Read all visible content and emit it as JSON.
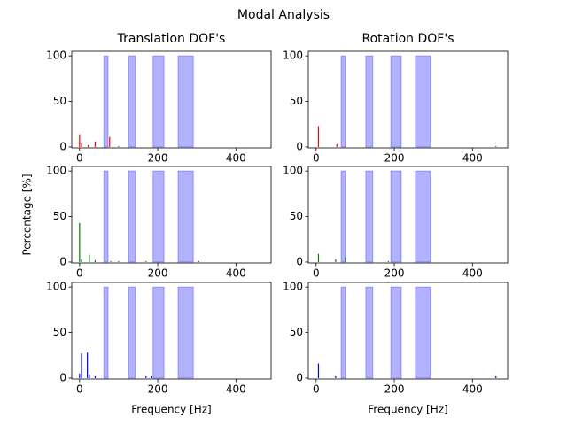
{
  "title": "Modal Analysis",
  "chart_data": [
    {
      "type": "bar",
      "title": "Translation DOF's",
      "xlim": [
        -20,
        490
      ],
      "ylim": [
        -1,
        105
      ],
      "xticks": [
        0,
        200,
        400
      ],
      "yticks": [
        0,
        50,
        100
      ],
      "spans": {
        "color": "#0000ff",
        "x0": [
          62,
          125,
          188,
          252
        ],
        "x1": [
          73,
          143,
          216,
          291
        ],
        "values": [
          100,
          100,
          100,
          100
        ]
      },
      "series": [
        {
          "color": "#ff0000",
          "x": [
            0,
            5,
            22,
            40,
            77,
            100
          ],
          "values": [
            14,
            4,
            2,
            6,
            11,
            1
          ]
        }
      ]
    },
    {
      "type": "bar",
      "title": "Rotation DOF's",
      "xlim": [
        -20,
        490
      ],
      "ylim": [
        -1,
        105
      ],
      "xticks": [
        0,
        200,
        400
      ],
      "yticks": [
        0,
        50,
        100
      ],
      "spans": {
        "color": "#0000ff",
        "x0": [
          64,
          127,
          191,
          254
        ],
        "x1": [
          75,
          145,
          218,
          293
        ],
        "values": [
          100,
          100,
          100,
          100
        ]
      },
      "series": [
        {
          "color": "#ff0000",
          "x": [
            6,
            53,
            75,
            460
          ],
          "values": [
            23,
            3,
            1,
            1
          ]
        }
      ]
    },
    {
      "type": "bar",
      "ylabel": "Percentage [%]",
      "xlim": [
        -20,
        490
      ],
      "ylim": [
        -1,
        105
      ],
      "xticks": [
        0,
        200,
        400
      ],
      "yticks": [
        0,
        50,
        100
      ],
      "spans": {
        "color": "#0000ff",
        "x0": [
          62,
          125,
          188,
          252
        ],
        "x1": [
          73,
          143,
          216,
          291
        ],
        "values": [
          100,
          100,
          100,
          100
        ]
      },
      "series": [
        {
          "color": "#008000",
          "x": [
            0,
            5,
            25,
            40,
            80,
            100,
            170,
            305
          ],
          "values": [
            43,
            3,
            8,
            2,
            1,
            1,
            1,
            1
          ]
        }
      ]
    },
    {
      "type": "bar",
      "xlim": [
        -20,
        490
      ],
      "ylim": [
        -1,
        105
      ],
      "xticks": [
        0,
        200,
        400
      ],
      "yticks": [
        0,
        50,
        100
      ],
      "spans": {
        "color": "#0000ff",
        "x0": [
          64,
          127,
          191,
          254
        ],
        "x1": [
          75,
          145,
          218,
          293
        ],
        "values": [
          100,
          100,
          100,
          100
        ]
      },
      "series": [
        {
          "color": "#008000",
          "x": [
            6,
            50,
            75,
            185
          ],
          "values": [
            9,
            3,
            5,
            1
          ]
        }
      ]
    },
    {
      "type": "bar",
      "xlabel": "Frequency [Hz]",
      "xlim": [
        -20,
        490
      ],
      "ylim": [
        -1,
        105
      ],
      "xticks": [
        0,
        200,
        400
      ],
      "yticks": [
        0,
        50,
        100
      ],
      "spans": {
        "color": "#0000ff",
        "x0": [
          62,
          125,
          188,
          252
        ],
        "x1": [
          73,
          143,
          216,
          291
        ],
        "values": [
          100,
          100,
          100,
          100
        ]
      },
      "series": [
        {
          "color": "#0000ff",
          "x": [
            0,
            5,
            20,
            25,
            40,
            170,
            185
          ],
          "values": [
            5,
            27,
            28,
            4,
            2,
            2,
            2
          ]
        }
      ]
    },
    {
      "type": "bar",
      "xlabel": "Frequency [Hz]",
      "xlim": [
        -20,
        490
      ],
      "ylim": [
        -1,
        105
      ],
      "xticks": [
        0,
        200,
        400
      ],
      "yticks": [
        0,
        50,
        100
      ],
      "spans": {
        "color": "#0000ff",
        "x0": [
          64,
          127,
          191,
          254
        ],
        "x1": [
          75,
          145,
          218,
          293
        ],
        "values": [
          100,
          100,
          100,
          100
        ]
      },
      "series": [
        {
          "color": "#0000ff",
          "x": [
            6,
            50,
            460
          ],
          "values": [
            16,
            2,
            2
          ]
        }
      ]
    }
  ]
}
